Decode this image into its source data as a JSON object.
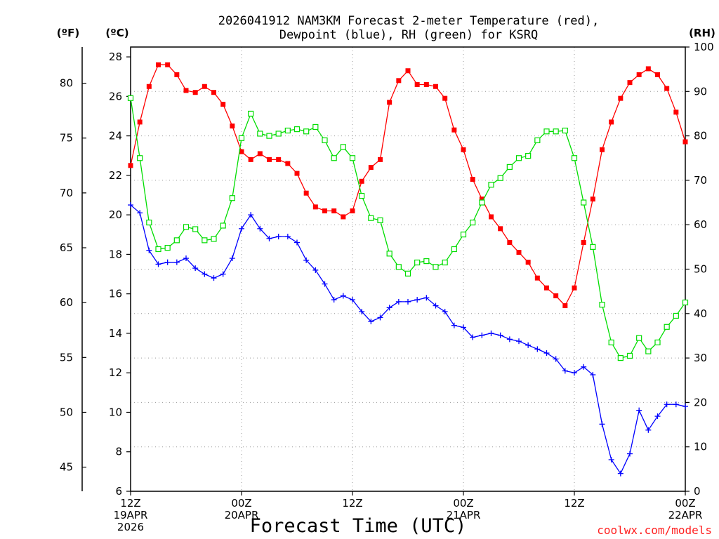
{
  "chart_data": {
    "type": "line",
    "title_lines": [
      "2026041912 NAM3KM Forecast 2-meter Temperature (red),",
      "Dewpoint (blue), RH (green) for KSRQ"
    ],
    "units": {
      "fahrenheit": "(ºF)",
      "celsius": "(ºC)",
      "rh": "(RH)"
    },
    "xlabel": "Forecast Time (UTC)",
    "credit": "coolwx.com/models",
    "x_range": [
      0,
      60
    ],
    "x_ticks": [
      {
        "value": 0,
        "lines": [
          "12Z",
          "19APR",
          "2026"
        ]
      },
      {
        "value": 12,
        "lines": [
          "00Z",
          "20APR"
        ]
      },
      {
        "value": 24,
        "lines": [
          "12Z"
        ]
      },
      {
        "value": 36,
        "lines": [
          "00Z",
          "21APR"
        ]
      },
      {
        "value": 48,
        "lines": [
          "12Z"
        ]
      },
      {
        "value": 60,
        "lines": [
          "00Z",
          "22APR"
        ]
      }
    ],
    "y_left_celsius": {
      "range": [
        6,
        28.5
      ],
      "ticks": [
        6,
        8,
        10,
        12,
        14,
        16,
        18,
        20,
        22,
        24,
        26,
        28
      ]
    },
    "y_left_fahrenheit": {
      "ticks": [
        45,
        50,
        55,
        60,
        65,
        70,
        75,
        80
      ]
    },
    "y_right_rh": {
      "range": [
        0,
        100
      ],
      "ticks": [
        0,
        10,
        20,
        30,
        40,
        50,
        60,
        70,
        80,
        90,
        100
      ]
    },
    "series": [
      {
        "name": "2-meter Temperature",
        "unit": "C",
        "axis": "celsius",
        "color": "#ff0000",
        "marker": "filled-square",
        "x": [
          0,
          1,
          2,
          3,
          4,
          5,
          6,
          7,
          8,
          9,
          10,
          11,
          12,
          13,
          14,
          15,
          16,
          17,
          18,
          19,
          20,
          21,
          22,
          23,
          24,
          25,
          26,
          27,
          28,
          29,
          30,
          31,
          32,
          33,
          34,
          35,
          36,
          37,
          38,
          39,
          40,
          41,
          42,
          43,
          44,
          45,
          46,
          47,
          48,
          49,
          50,
          51,
          52,
          53,
          54,
          55,
          56,
          57,
          58,
          59,
          60
        ],
        "values": [
          22.5,
          24.7,
          26.5,
          27.6,
          27.6,
          27.1,
          26.3,
          26.2,
          26.5,
          26.2,
          25.6,
          24.5,
          23.2,
          22.8,
          23.1,
          22.8,
          22.8,
          22.6,
          22.1,
          21.1,
          20.4,
          20.2,
          20.2,
          19.9,
          20.2,
          21.7,
          22.4,
          22.8,
          25.7,
          26.8,
          27.3,
          26.6,
          26.6,
          26.5,
          25.9,
          24.3,
          23.3,
          21.8,
          20.8,
          19.9,
          19.3,
          18.6,
          18.1,
          17.6,
          16.8,
          16.3,
          15.9,
          15.4,
          16.3,
          18.6,
          20.8,
          23.3,
          24.7,
          25.9,
          26.7,
          27.1,
          27.4,
          27.1,
          26.4,
          25.2,
          23.7
        ]
      },
      {
        "name": "Dewpoint",
        "unit": "C",
        "axis": "celsius",
        "color": "#0000ff",
        "marker": "plus",
        "x": [
          0,
          1,
          2,
          3,
          4,
          5,
          6,
          7,
          8,
          9,
          10,
          11,
          12,
          13,
          14,
          15,
          16,
          17,
          18,
          19,
          20,
          21,
          22,
          23,
          24,
          25,
          26,
          27,
          28,
          29,
          30,
          31,
          32,
          33,
          34,
          35,
          36,
          37,
          38,
          39,
          40,
          41,
          42,
          43,
          44,
          45,
          46,
          47,
          48,
          49,
          50,
          51,
          52,
          53,
          54,
          55,
          56,
          57,
          58,
          59,
          60
        ],
        "values": [
          20.5,
          20.1,
          18.2,
          17.5,
          17.6,
          17.6,
          17.8,
          17.3,
          17.0,
          16.8,
          17.0,
          17.8,
          19.3,
          20.0,
          19.3,
          18.8,
          18.9,
          18.9,
          18.6,
          17.7,
          17.2,
          16.5,
          15.7,
          15.9,
          15.7,
          15.1,
          14.6,
          14.8,
          15.3,
          15.6,
          15.6,
          15.7,
          15.8,
          15.4,
          15.1,
          14.4,
          14.3,
          13.8,
          13.9,
          14.0,
          13.9,
          13.7,
          13.6,
          13.4,
          13.2,
          13.0,
          12.7,
          12.1,
          12.0,
          12.3,
          11.9,
          9.4,
          7.6,
          6.9,
          7.9,
          10.1,
          9.1,
          9.8,
          10.4,
          10.4,
          10.3
        ]
      },
      {
        "name": "RH",
        "unit": "%",
        "axis": "rh",
        "color": "#00dd00",
        "marker": "open-square",
        "x": [
          0,
          1,
          2,
          3,
          4,
          5,
          6,
          7,
          8,
          9,
          10,
          11,
          12,
          13,
          14,
          15,
          16,
          17,
          18,
          19,
          20,
          21,
          22,
          23,
          24,
          25,
          26,
          27,
          28,
          29,
          30,
          31,
          32,
          33,
          34,
          35,
          36,
          37,
          38,
          39,
          40,
          41,
          42,
          43,
          44,
          45,
          46,
          47,
          48,
          49,
          50,
          51,
          52,
          53,
          54,
          55,
          56,
          57,
          58,
          59,
          60
        ],
        "values": [
          88.5,
          75.0,
          60.5,
          54.5,
          54.8,
          56.5,
          59.5,
          59.0,
          56.5,
          56.8,
          59.8,
          66.0,
          79.5,
          85.0,
          80.5,
          80.0,
          80.5,
          81.2,
          81.5,
          81.0,
          82.0,
          79.0,
          75.0,
          77.5,
          75.0,
          66.5,
          61.5,
          61.0,
          53.5,
          50.5,
          49.0,
          51.5,
          51.8,
          50.5,
          51.5,
          54.5,
          57.8,
          60.5,
          65.0,
          69.0,
          70.5,
          73.0,
          75.0,
          75.5,
          79.0,
          81.0,
          81.0,
          81.2,
          75.0,
          65.0,
          55.0,
          42.0,
          33.5,
          30.0,
          30.5,
          34.5,
          31.5,
          33.5,
          37.0,
          39.5,
          42.5
        ]
      }
    ]
  }
}
